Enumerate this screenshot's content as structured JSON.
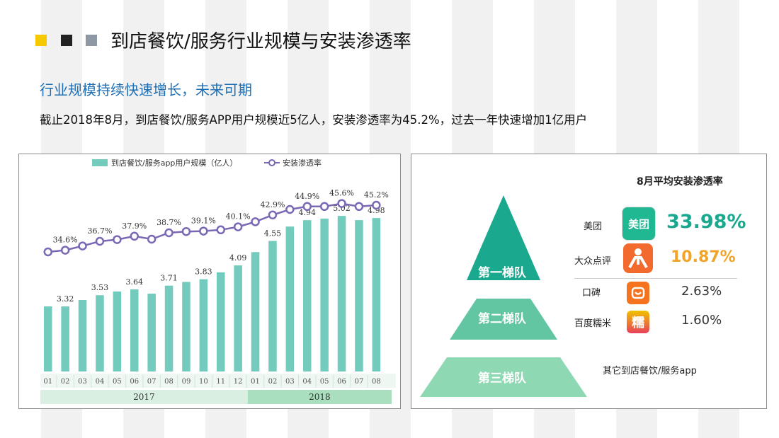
{
  "header": {
    "title": "到店餐饮/服务行业规模与安装渗透率",
    "subtitle": "行业规模持续快速增长，未来可期",
    "description": "截止2018年8月，到店餐饮/服务APP用户规模近5亿人，安装渗透率为45.2%，过去一年快速增加1亿用户",
    "square_colors": [
      "#f5c800",
      "#222222",
      "#8d98a4"
    ]
  },
  "chart_data": {
    "type": "bar",
    "legend": [
      "到店餐饮/服务app用户规模（亿人）",
      "安装渗透率"
    ],
    "legend_position": "top",
    "months": [
      "01",
      "02",
      "03",
      "04",
      "05",
      "06",
      "07",
      "08",
      "09",
      "10",
      "11",
      "12",
      "01",
      "02",
      "03",
      "04",
      "05",
      "06",
      "07",
      "08"
    ],
    "years": [
      {
        "label": "2017",
        "span": 12
      },
      {
        "label": "2018",
        "span": 8
      }
    ],
    "series": [
      {
        "name": "到店餐饮/服务app用户规模（亿人）",
        "values": [
          3.32,
          3.32,
          3.44,
          3.53,
          3.6,
          3.64,
          3.56,
          3.71,
          3.78,
          3.83,
          3.96,
          4.09,
          4.34,
          4.55,
          4.82,
          4.94,
          4.97,
          5.02,
          4.94,
          4.98
        ],
        "labels": [
          "",
          "3.32",
          "",
          "3.53",
          "",
          "3.64",
          "",
          "3.71",
          "",
          "3.83",
          "",
          "4.09",
          "",
          "4.55",
          "",
          "4.94",
          "",
          "5.02",
          "",
          "4.98"
        ],
        "color": "#72cbbd"
      },
      {
        "name": "安装渗透率",
        "values": [
          34.2,
          34.6,
          35.6,
          36.7,
          37.1,
          37.9,
          37.2,
          38.7,
          39.0,
          39.1,
          39.4,
          40.1,
          41.3,
          42.9,
          44.2,
          44.9,
          44.9,
          45.6,
          44.9,
          45.2
        ],
        "labels": [
          "",
          "34.6%",
          "",
          "36.7%",
          "",
          "37.9%",
          "",
          "38.7%",
          "",
          "39.1%",
          "",
          "40.1%",
          "",
          "42.9%",
          "",
          "44.9%",
          "",
          "45.6%",
          "",
          "45.2%"
        ],
        "color": "#7b68b5"
      }
    ]
  },
  "pyramid": {
    "title": "8月平均安装渗透率",
    "tiers": [
      "第一梯队",
      "第二梯队",
      "第三梯队"
    ],
    "apps": [
      {
        "name": "美团",
        "icon": "meituan-icon",
        "icon_text": "美团",
        "percent": "33.98%",
        "color": "#1aa88f"
      },
      {
        "name": "大众点评",
        "icon": "dianping-icon",
        "icon_text": "",
        "percent": "10.87%",
        "color": "#f0a52a"
      },
      {
        "name": "口碑",
        "icon": "koubei-icon",
        "icon_text": "",
        "percent": "2.63%",
        "color": "#333333"
      },
      {
        "name": "百度糯米",
        "icon": "nuomi-icon",
        "icon_text": "糯",
        "percent": "1.60%",
        "color": "#333333"
      }
    ],
    "others": "其它到店餐饮/服务app"
  }
}
